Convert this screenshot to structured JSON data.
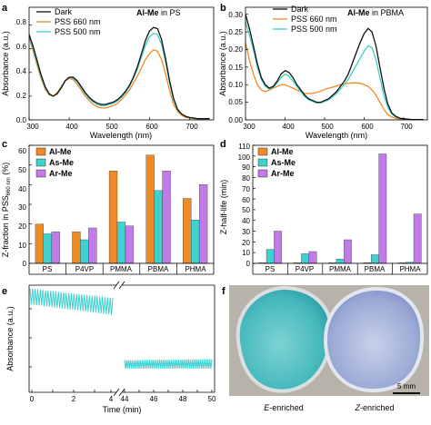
{
  "panel_labels": {
    "a": "a",
    "b": "b",
    "c": "c",
    "d": "d",
    "e": "e",
    "f": "f"
  },
  "colors": {
    "dark": "#111111",
    "pss660": "#f08a24",
    "pss500": "#40cfc8",
    "al": "#f08a24",
    "as": "#3fd1cf",
    "ar": "#c27ae8",
    "kinetic": "#3fd1cf"
  },
  "panel_a": {
    "legend": [
      "Dark",
      "PSS 660 nm",
      "PSS 500 nm"
    ],
    "title_bold": "Al-Me",
    "title_rest": " in PS",
    "xlabel": "Wavelength (nm)",
    "ylabel": "Absorbance (a.u.)",
    "xticks": [
      "300",
      "400",
      "500",
      "600",
      "700"
    ],
    "yticks": [
      "0.0",
      "0.2",
      "0.4",
      "0.6",
      "0.8"
    ]
  },
  "panel_b": {
    "legend": [
      "Dark",
      "PSS 660 nm",
      "PSS 500 nm"
    ],
    "title_bold": "Al-Me",
    "title_rest": " in PBMA",
    "xlabel": "Wavelength (nm)",
    "ylabel": "Absorbance (a.u.)",
    "xticks": [
      "300",
      "400",
      "500",
      "600",
      "700"
    ],
    "yticks": [
      "0.00",
      "0.05",
      "0.10",
      "0.15",
      "0.20",
      "0.25",
      "0.30"
    ]
  },
  "panel_c": {
    "legend": [
      "Al-Me",
      "As-Me",
      "Ar-Me"
    ],
    "ylabel_pre": "Z-fraction in PSS",
    "ylabel_sub": "660 nm",
    "ylabel_post": " (%)",
    "yticks": [
      "0",
      "10",
      "20",
      "30",
      "40",
      "50",
      "60"
    ],
    "categories": [
      "PS",
      "P4VP",
      "PMMA",
      "PBMA",
      "PHMA"
    ]
  },
  "panel_d": {
    "legend": [
      "Al-Me",
      "As-Me",
      "Ar-Me"
    ],
    "ylabel": "Z-half-life (min)",
    "yticks": [
      "0",
      "10",
      "20",
      "30",
      "40",
      "50",
      "60",
      "70",
      "80",
      "90",
      "100",
      "110"
    ],
    "categories": [
      "PS",
      "P4VP",
      "PMMA",
      "PBMA",
      "PHMA"
    ]
  },
  "panel_e": {
    "xlabel": "Time (min)",
    "ylabel": "Absorbance (a.u.)",
    "xticks": [
      "0",
      "2",
      "4",
      "44",
      "46",
      "48",
      "50"
    ]
  },
  "panel_f": {
    "left_caption_ital": "E",
    "left_caption_rest": "-enriched",
    "right_caption_ital": "Z",
    "right_caption_rest": "-enriched",
    "scale_bar": "5 mm"
  },
  "chart_data": [
    {
      "type": "line",
      "title": "Al-Me in PS",
      "xlabel": "Wavelength (nm)",
      "ylabel": "Absorbance (a.u.)",
      "xlim": [
        300,
        760
      ],
      "ylim": [
        0,
        0.95
      ],
      "series": [
        {
          "name": "Dark",
          "x": [
            300,
            310,
            320,
            330,
            340,
            350,
            360,
            370,
            380,
            390,
            400,
            410,
            420,
            430,
            440,
            450,
            460,
            470,
            480,
            490,
            500,
            510,
            520,
            530,
            540,
            550,
            560,
            570,
            580,
            590,
            600,
            610,
            620,
            630,
            640,
            650,
            660,
            670,
            680,
            690,
            700,
            710,
            720,
            730,
            740,
            750
          ],
          "values": [
            0.72,
            0.62,
            0.5,
            0.38,
            0.28,
            0.22,
            0.2,
            0.22,
            0.27,
            0.33,
            0.36,
            0.36,
            0.33,
            0.28,
            0.23,
            0.19,
            0.16,
            0.14,
            0.13,
            0.13,
            0.14,
            0.15,
            0.17,
            0.2,
            0.24,
            0.29,
            0.36,
            0.45,
            0.56,
            0.67,
            0.75,
            0.78,
            0.77,
            0.68,
            0.52,
            0.33,
            0.18,
            0.09,
            0.05,
            0.03,
            0.02,
            0.015,
            0.01,
            0.01,
            0.01,
            0.01
          ]
        },
        {
          "name": "PSS 660 nm",
          "x": [
            300,
            310,
            320,
            330,
            340,
            350,
            360,
            370,
            380,
            390,
            400,
            410,
            420,
            430,
            440,
            450,
            460,
            470,
            480,
            490,
            500,
            510,
            520,
            530,
            540,
            550,
            560,
            570,
            580,
            590,
            600,
            610,
            620,
            630,
            640,
            650,
            660,
            670,
            680,
            690,
            700,
            710,
            720,
            730,
            740,
            750
          ],
          "values": [
            0.7,
            0.58,
            0.46,
            0.35,
            0.26,
            0.21,
            0.2,
            0.23,
            0.28,
            0.33,
            0.35,
            0.34,
            0.3,
            0.25,
            0.2,
            0.16,
            0.13,
            0.11,
            0.1,
            0.1,
            0.11,
            0.12,
            0.14,
            0.17,
            0.21,
            0.25,
            0.31,
            0.37,
            0.44,
            0.51,
            0.56,
            0.59,
            0.58,
            0.51,
            0.39,
            0.25,
            0.13,
            0.07,
            0.04,
            0.02,
            0.015,
            0.01,
            0.01,
            0.01,
            0.01,
            0.01
          ]
        },
        {
          "name": "PSS 500 nm",
          "x": [
            300,
            310,
            320,
            330,
            340,
            350,
            360,
            370,
            380,
            390,
            400,
            410,
            420,
            430,
            440,
            450,
            460,
            470,
            480,
            490,
            500,
            510,
            520,
            530,
            540,
            550,
            560,
            570,
            580,
            590,
            600,
            610,
            620,
            630,
            640,
            650,
            660,
            670,
            680,
            690,
            700,
            710,
            720,
            730,
            740,
            750
          ],
          "values": [
            0.71,
            0.6,
            0.48,
            0.37,
            0.27,
            0.22,
            0.2,
            0.22,
            0.27,
            0.33,
            0.36,
            0.35,
            0.32,
            0.27,
            0.22,
            0.18,
            0.15,
            0.13,
            0.12,
            0.12,
            0.13,
            0.14,
            0.16,
            0.19,
            0.23,
            0.28,
            0.35,
            0.43,
            0.53,
            0.63,
            0.7,
            0.73,
            0.72,
            0.64,
            0.49,
            0.31,
            0.17,
            0.08,
            0.05,
            0.03,
            0.02,
            0.015,
            0.01,
            0.01,
            0.01,
            0.01
          ]
        }
      ]
    },
    {
      "type": "line",
      "title": "Al-Me in PBMA",
      "xlabel": "Wavelength (nm)",
      "ylabel": "Absorbance (a.u.)",
      "xlim": [
        300,
        760
      ],
      "ylim": [
        0,
        0.32
      ],
      "series": [
        {
          "name": "Dark",
          "x": [
            300,
            310,
            320,
            330,
            340,
            350,
            360,
            370,
            380,
            390,
            400,
            410,
            420,
            430,
            440,
            450,
            460,
            470,
            480,
            490,
            500,
            510,
            520,
            530,
            540,
            550,
            560,
            570,
            580,
            590,
            600,
            610,
            620,
            630,
            640,
            650,
            660,
            670,
            680,
            690,
            700,
            710,
            720,
            730,
            740,
            750
          ],
          "values": [
            0.3,
            0.26,
            0.21,
            0.16,
            0.12,
            0.1,
            0.09,
            0.095,
            0.11,
            0.13,
            0.14,
            0.135,
            0.12,
            0.1,
            0.085,
            0.07,
            0.06,
            0.055,
            0.05,
            0.05,
            0.055,
            0.06,
            0.07,
            0.08,
            0.095,
            0.11,
            0.13,
            0.16,
            0.19,
            0.22,
            0.245,
            0.26,
            0.25,
            0.21,
            0.15,
            0.09,
            0.045,
            0.02,
            0.01,
            0.005,
            0.003,
            0.002,
            0.001,
            0.001,
            0.001,
            0.001
          ]
        },
        {
          "name": "PSS 660 nm",
          "x": [
            300,
            310,
            320,
            330,
            340,
            350,
            360,
            370,
            380,
            390,
            400,
            410,
            420,
            430,
            440,
            450,
            460,
            470,
            480,
            490,
            500,
            510,
            520,
            530,
            540,
            550,
            560,
            570,
            580,
            590,
            600,
            610,
            620,
            630,
            640,
            650,
            660,
            670,
            680,
            690,
            700,
            710,
            720,
            730,
            740,
            750
          ],
          "values": [
            0.22,
            0.17,
            0.13,
            0.1,
            0.085,
            0.08,
            0.085,
            0.09,
            0.095,
            0.1,
            0.1,
            0.095,
            0.09,
            0.085,
            0.08,
            0.075,
            0.075,
            0.075,
            0.078,
            0.082,
            0.086,
            0.09,
            0.093,
            0.096,
            0.1,
            0.102,
            0.104,
            0.105,
            0.105,
            0.104,
            0.1,
            0.095,
            0.085,
            0.07,
            0.05,
            0.03,
            0.015,
            0.008,
            0.004,
            0.002,
            0.001,
            0.001,
            0.001,
            0.001,
            0.001,
            0.001
          ]
        },
        {
          "name": "PSS 500 nm",
          "x": [
            300,
            310,
            320,
            330,
            340,
            350,
            360,
            370,
            380,
            390,
            400,
            410,
            420,
            430,
            440,
            450,
            460,
            470,
            480,
            490,
            500,
            510,
            520,
            530,
            540,
            550,
            560,
            570,
            580,
            590,
            600,
            610,
            620,
            630,
            640,
            650,
            660,
            670,
            680,
            690,
            700,
            710,
            720,
            730,
            740,
            750
          ],
          "values": [
            0.28,
            0.24,
            0.2,
            0.15,
            0.115,
            0.095,
            0.088,
            0.092,
            0.105,
            0.12,
            0.13,
            0.125,
            0.11,
            0.095,
            0.08,
            0.066,
            0.057,
            0.052,
            0.048,
            0.048,
            0.052,
            0.057,
            0.065,
            0.075,
            0.088,
            0.1,
            0.115,
            0.135,
            0.155,
            0.175,
            0.195,
            0.21,
            0.205,
            0.17,
            0.12,
            0.07,
            0.035,
            0.017,
            0.008,
            0.004,
            0.002,
            0.001,
            0.001,
            0.001,
            0.001,
            0.001
          ]
        }
      ]
    },
    {
      "type": "bar",
      "ylabel": "Z-fraction in PSS660 nm (%)",
      "ylim": [
        0,
        60
      ],
      "categories": [
        "PS",
        "P4VP",
        "PMMA",
        "PBMA",
        "PHMA"
      ],
      "series": [
        {
          "name": "Al-Me",
          "values": [
            20,
            16,
            47,
            55,
            33
          ]
        },
        {
          "name": "As-Me",
          "values": [
            15,
            12,
            21,
            37,
            22
          ]
        },
        {
          "name": "Ar-Me",
          "values": [
            16,
            18,
            19,
            47,
            40
          ]
        }
      ]
    },
    {
      "type": "bar",
      "ylabel": "Z-half-life (min)",
      "ylim": [
        0,
        110
      ],
      "categories": [
        "PS",
        "P4VP",
        "PMMA",
        "PBMA",
        "PHMA"
      ],
      "series": [
        {
          "name": "Al-Me",
          "values": [
            0.5,
            0.5,
            0.5,
            0.5,
            0.5
          ]
        },
        {
          "name": "As-Me",
          "values": [
            13,
            9,
            4,
            8,
            1
          ]
        },
        {
          "name": "Ar-Me",
          "values": [
            30,
            11,
            22,
            102,
            46
          ]
        }
      ]
    },
    {
      "type": "line",
      "xlabel": "Time (min)",
      "ylabel": "Absorbance (a.u.)",
      "xlim": [
        0,
        50
      ],
      "series": [
        {
          "segments": [
            {
              "t_start": 0,
              "t_end": 4,
              "cycles": 32,
              "upper_start": 0.97,
              "upper_end": 0.88,
              "lower_start": 0.82,
              "lower_end": 0.72
            },
            {
              "t_start": 44,
              "t_end": 50,
              "cycles": 45,
              "upper_start": 0.3,
              "upper_end": 0.31,
              "lower_start": 0.22,
              "lower_end": 0.22
            }
          ]
        }
      ]
    }
  ]
}
